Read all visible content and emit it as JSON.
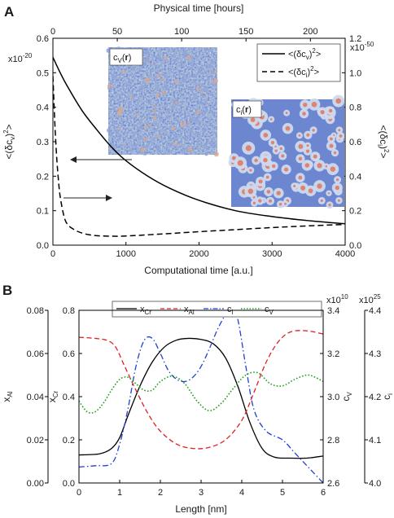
{
  "chart_data": [
    {
      "panel": "A",
      "type": "line",
      "xlabel": "Computational time [a.u.]",
      "xlim": [
        0,
        4000
      ],
      "x_ticks": [
        "0",
        "1000",
        "2000",
        "3000",
        "4000"
      ],
      "top_xlabel": "Physical time [hours]",
      "top_xlim": [
        0,
        227
      ],
      "top_ticks": [
        "0",
        "50",
        "100",
        "150",
        "200"
      ],
      "ylabel_left": "<(δc_v)^2>",
      "ylim_left": [
        0,
        0.6
      ],
      "left_ticks": [
        "0.0",
        "0.1",
        "0.2",
        "0.3",
        "0.4",
        "0.5",
        "0.6"
      ],
      "left_multiplier": "x10^-20",
      "ylabel_right": "<(δc_i)^2>",
      "ylim_right": [
        0,
        1.2
      ],
      "right_ticks": [
        "0.0",
        "0.2",
        "0.4",
        "0.6",
        "0.8",
        "1.0",
        "1.2"
      ],
      "right_multiplier": "x10^-50",
      "legend_position": "top-right",
      "insets": [
        {
          "label": "c_V(r)",
          "pattern": "fine-grained noise",
          "colors": [
            "#4a66bd",
            "#8ea4d8",
            "#d8a890"
          ]
        },
        {
          "label": "c_i(r)",
          "pattern": "dispersed droplets",
          "colors": [
            "#6b86cf",
            "#cfd8ee",
            "#e07a5f"
          ]
        }
      ],
      "series": [
        {
          "name": "<(δc_v)^2>",
          "axis": "left",
          "style": "solid",
          "x": [
            0,
            100,
            200,
            400,
            600,
            800,
            1000,
            1300,
            1600,
            2000,
            2500,
            3000,
            3500,
            4000
          ],
          "y": [
            0.545,
            0.5,
            0.46,
            0.39,
            0.335,
            0.285,
            0.245,
            0.2,
            0.165,
            0.13,
            0.1,
            0.083,
            0.071,
            0.062
          ]
        },
        {
          "name": "<(δc_i)^2>",
          "axis": "right",
          "style": "dashed",
          "x": [
            0,
            25,
            50,
            75,
            100,
            150,
            200,
            300,
            400,
            500,
            600,
            800,
            1000,
            1500,
            2000,
            2500,
            3000,
            3500,
            4000
          ],
          "y": [
            0.98,
            0.72,
            0.52,
            0.38,
            0.28,
            0.17,
            0.12,
            0.088,
            0.07,
            0.06,
            0.055,
            0.052,
            0.053,
            0.065,
            0.078,
            0.09,
            0.102,
            0.112,
            0.12
          ]
        }
      ]
    },
    {
      "panel": "B",
      "type": "line",
      "xlabel": "Length [nm]",
      "xlim": [
        0,
        6
      ],
      "x_ticks": [
        "0",
        "1",
        "2",
        "3",
        "4",
        "5",
        "6"
      ],
      "axes": {
        "x_Al": {
          "label": "x_Al",
          "lim": [
            0,
            0.08
          ],
          "ticks": [
            "0.00",
            "0.02",
            "0.04",
            "0.06",
            "0.08"
          ]
        },
        "x_Cr": {
          "label": "x_Cr",
          "lim": [
            0,
            0.8
          ],
          "ticks": [
            "0.0",
            "0.2",
            "0.4",
            "0.6",
            "0.8"
          ]
        },
        "c_V": {
          "label": "c_V",
          "lim": [
            2.6,
            3.4
          ],
          "ticks": [
            "2.6",
            "2.8",
            "3.0",
            "3.2",
            "3.4"
          ],
          "multiplier": "x10^10"
        },
        "c_i": {
          "label": "c_i",
          "lim": [
            4.0,
            4.4
          ],
          "ticks": [
            "4.0",
            "4.1",
            "4.2",
            "4.3",
            "4.4"
          ],
          "multiplier": "x10^25"
        }
      },
      "legend_position": "top",
      "series": [
        {
          "name": "x_Cr",
          "axis": "x_Cr",
          "style": "solid",
          "color": "#000000",
          "x": [
            0,
            0.5,
            0.8,
            1.0,
            1.2,
            1.5,
            1.8,
            2.1,
            2.4,
            2.7,
            3.0,
            3.3,
            3.6,
            3.9,
            4.2,
            4.5,
            4.8,
            5.2,
            5.6,
            6.0
          ],
          "y": [
            0.13,
            0.135,
            0.16,
            0.21,
            0.31,
            0.45,
            0.56,
            0.63,
            0.662,
            0.67,
            0.665,
            0.645,
            0.58,
            0.45,
            0.28,
            0.16,
            0.12,
            0.115,
            0.115,
            0.125
          ]
        },
        {
          "name": "x_Al",
          "axis": "x_Al",
          "style": "dashed",
          "color": "#e02020",
          "x": [
            0,
            0.4,
            0.7,
            0.9,
            1.1,
            1.4,
            1.7,
            2.0,
            2.4,
            2.8,
            3.2,
            3.6,
            4.0,
            4.3,
            4.6,
            4.9,
            5.2,
            5.6,
            6.0
          ],
          "y": [
            0.0675,
            0.067,
            0.066,
            0.063,
            0.055,
            0.043,
            0.032,
            0.024,
            0.018,
            0.016,
            0.0165,
            0.02,
            0.029,
            0.042,
            0.056,
            0.0655,
            0.07,
            0.0705,
            0.069
          ]
        },
        {
          "name": "c_i",
          "axis": "c_i",
          "style": "dashdot",
          "color": "#2040d0",
          "x": [
            0,
            0.4,
            0.8,
            1.0,
            1.2,
            1.4,
            1.6,
            1.8,
            2.0,
            2.2,
            2.4,
            2.6,
            2.8,
            3.0,
            3.2,
            3.4,
            3.6,
            3.75,
            3.9,
            4.1,
            4.3,
            4.6,
            5.0,
            5.3,
            5.6,
            6.0
          ],
          "y": [
            4.037,
            4.04,
            4.045,
            4.09,
            4.17,
            4.27,
            4.33,
            4.335,
            4.3,
            4.26,
            4.24,
            4.235,
            4.245,
            4.27,
            4.31,
            4.355,
            4.39,
            4.405,
            4.38,
            4.27,
            4.17,
            4.12,
            4.1,
            4.07,
            4.04,
            4.0
          ]
        },
        {
          "name": "c_V",
          "axis": "c_V",
          "style": "dotted",
          "color": "#20a020",
          "x": [
            0,
            0.2,
            0.4,
            0.6,
            0.8,
            1.0,
            1.2,
            1.4,
            1.6,
            1.8,
            2.0,
            2.3,
            2.6,
            2.9,
            3.2,
            3.5,
            3.8,
            4.1,
            4.4,
            4.7,
            5.0,
            5.3,
            5.6,
            5.8,
            6.0
          ],
          "y": [
            2.98,
            2.93,
            2.93,
            2.97,
            3.03,
            3.08,
            3.09,
            3.06,
            3.03,
            3.03,
            3.07,
            3.095,
            3.06,
            2.98,
            2.935,
            2.97,
            3.04,
            3.1,
            3.11,
            3.06,
            3.05,
            3.08,
            3.1,
            3.09,
            3.07
          ]
        }
      ]
    }
  ],
  "labels": {
    "panelA": "A",
    "panelB": "B",
    "topXlabel": "Physical time [hours]",
    "bottomXlabelA": "Computational time [a.u.]",
    "multLeftA": "x10",
    "multLeftAExp": "-20",
    "multRightA": "x10",
    "multRightAExp": "-50",
    "xlabelB": "Length [nm]",
    "multCv": "x10",
    "multCvExp": "10",
    "multCi": "x10",
    "multCiExp": "25"
  }
}
